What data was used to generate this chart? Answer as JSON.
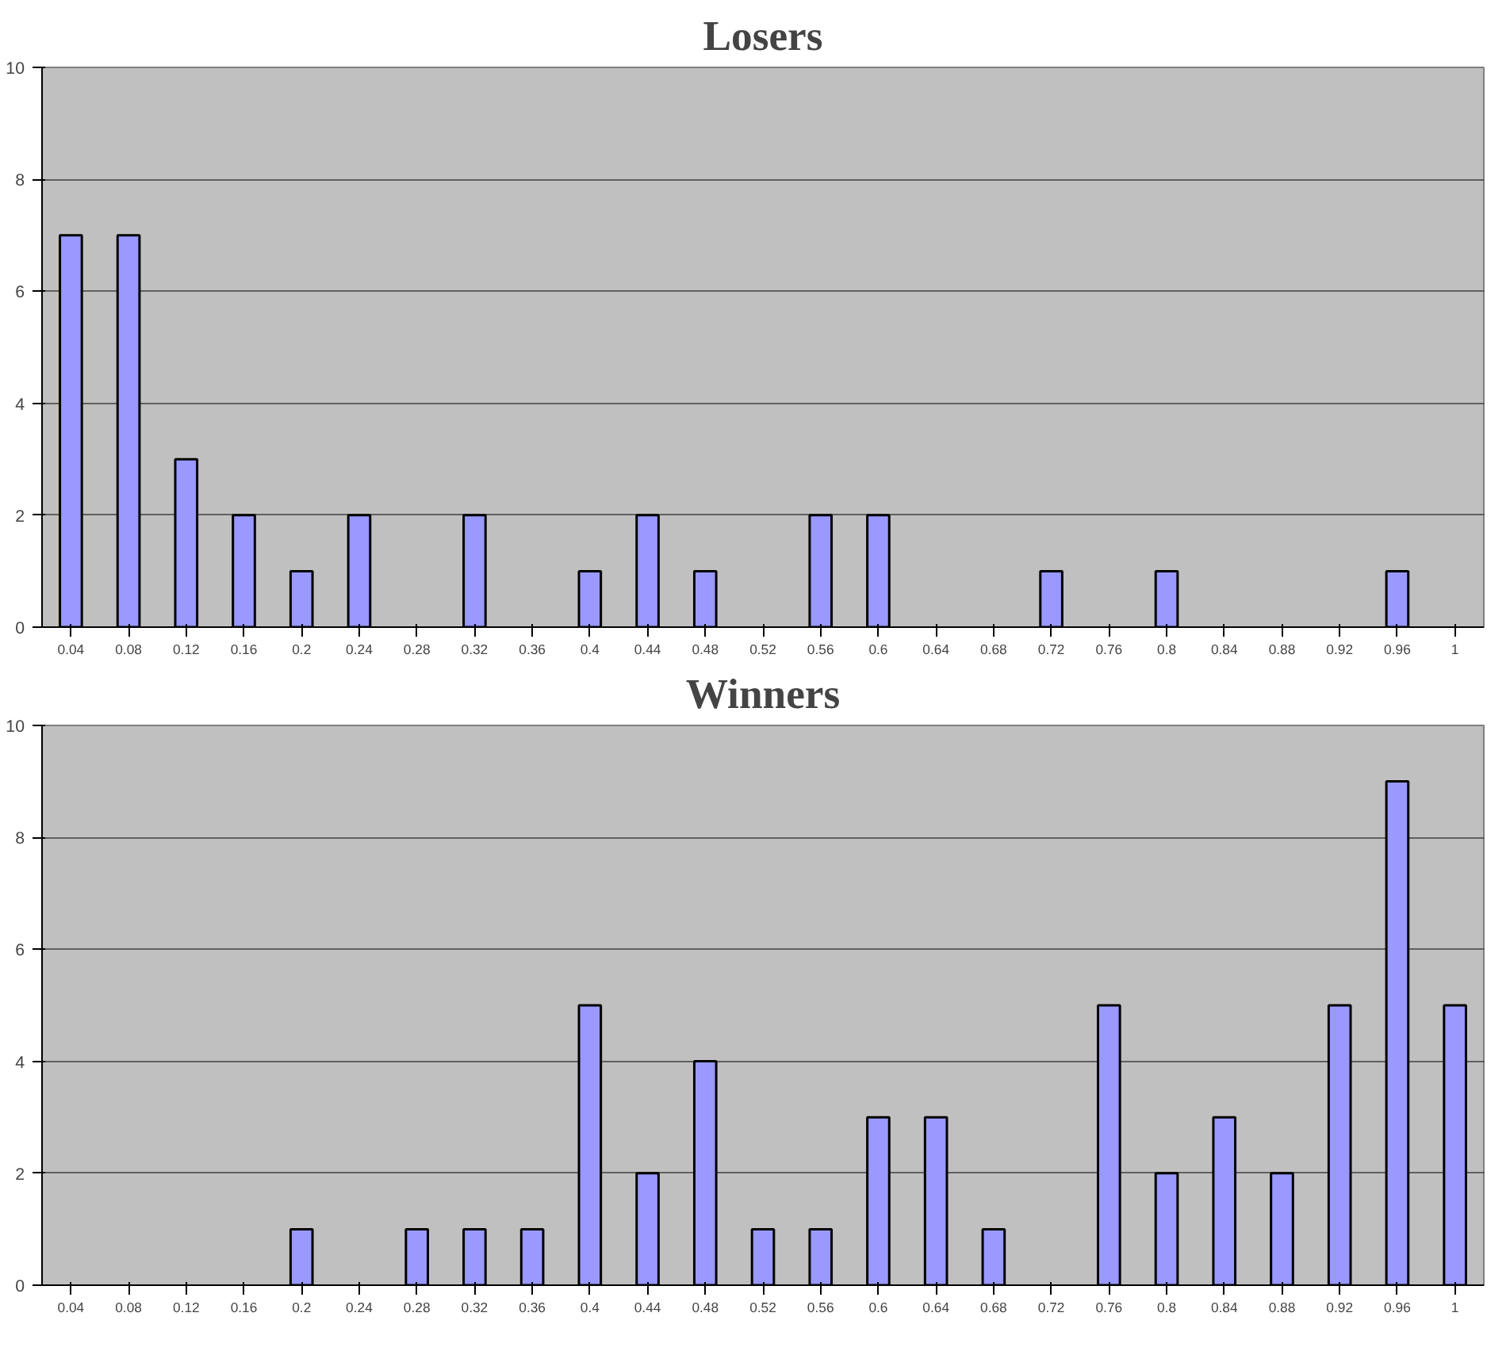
{
  "chart_data": [
    {
      "type": "bar",
      "title": "Losers",
      "categories": [
        "0.04",
        "0.08",
        "0.12",
        "0.16",
        "0.2",
        "0.24",
        "0.28",
        "0.32",
        "0.36",
        "0.4",
        "0.44",
        "0.48",
        "0.52",
        "0.56",
        "0.6",
        "0.64",
        "0.68",
        "0.72",
        "0.76",
        "0.8",
        "0.84",
        "0.88",
        "0.92",
        "0.96",
        "1"
      ],
      "values": [
        7,
        7,
        3,
        2,
        1,
        2,
        0,
        2,
        0,
        1,
        2,
        1,
        0,
        2,
        2,
        0,
        0,
        1,
        0,
        1,
        0,
        0,
        0,
        1,
        0
      ],
      "color": "#9999ff",
      "ylim": [
        0,
        10
      ],
      "yticks": [
        0,
        2,
        4,
        6,
        8,
        10
      ],
      "grid": "y"
    },
    {
      "type": "bar",
      "title": "Winners",
      "categories": [
        "0.04",
        "0.08",
        "0.12",
        "0.16",
        "0.2",
        "0.24",
        "0.28",
        "0.32",
        "0.36",
        "0.4",
        "0.44",
        "0.48",
        "0.52",
        "0.56",
        "0.6",
        "0.64",
        "0.68",
        "0.72",
        "0.76",
        "0.8",
        "0.84",
        "0.88",
        "0.92",
        "0.96",
        "1"
      ],
      "values": [
        0,
        0,
        0,
        0,
        1,
        0,
        1,
        1,
        1,
        5,
        2,
        4,
        1,
        1,
        3,
        3,
        1,
        0,
        5,
        2,
        3,
        2,
        5,
        9,
        5
      ],
      "color": "#9999ff",
      "ylim": [
        0,
        10
      ],
      "yticks": [
        0,
        2,
        4,
        6,
        8,
        10
      ],
      "grid": "y"
    }
  ]
}
